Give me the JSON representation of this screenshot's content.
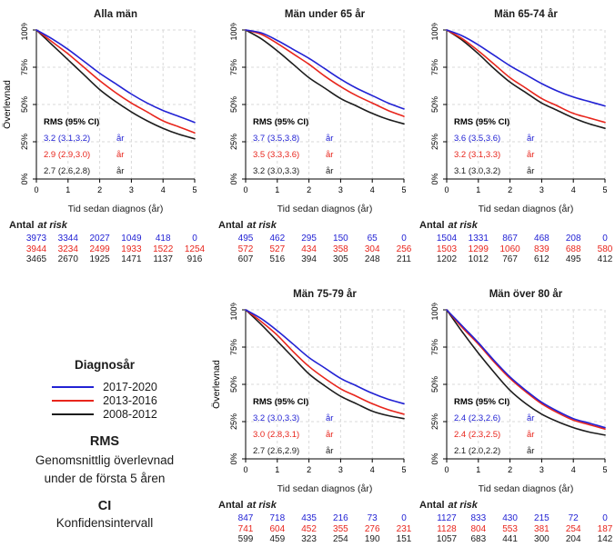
{
  "colors": {
    "blue": "#2222d4",
    "red": "#e8251c",
    "black": "#1c1c1c",
    "grid": "#d9d9d9",
    "axis": "#000000"
  },
  "rms_header": "RMS (95% CI)",
  "rms_unit": "år",
  "at_risk_label": {
    "bold": "Antal",
    "italic": "at risk"
  },
  "axis": {
    "ylabel": "Överlevnad",
    "xlabel": "Tid sedan diagnos (år)",
    "yticks": [
      "0%",
      "25%",
      "50%",
      "75%",
      "100%"
    ],
    "xticks": [
      "0",
      "1",
      "2",
      "3",
      "4",
      "5"
    ]
  },
  "legend": {
    "title": "Diagnosår",
    "items": [
      {
        "label": "2017-2020",
        "color_key": "blue"
      },
      {
        "label": "2013-2016",
        "color_key": "red"
      },
      {
        "label": "2008-2012",
        "color_key": "black"
      }
    ],
    "rms_title": "RMS",
    "rms_desc_line1": "Genomsnittlig överlevnad",
    "rms_desc_line2": "under de första 5 åren",
    "ci_title": "CI",
    "ci_desc": "Konfidensintervall"
  },
  "x_years": [
    0,
    0.5,
    1,
    1.5,
    2,
    2.5,
    3,
    3.5,
    4,
    4.5,
    5
  ],
  "chart_data": [
    {
      "type": "line",
      "title": "Alla män",
      "show_ylabel": true,
      "ylim": [
        0,
        100
      ],
      "xlim": [
        0,
        5
      ],
      "series": [
        {
          "name": "2017-2020",
          "color_key": "blue",
          "values": [
            100,
            94,
            87,
            79,
            71,
            64,
            57,
            51,
            46,
            42,
            38
          ],
          "rms": "3.2 (3.1,3.2)",
          "at_risk": [
            3973,
            3344,
            2027,
            1049,
            418,
            0
          ]
        },
        {
          "name": "2013-2016",
          "color_key": "red",
          "values": [
            100,
            92,
            84,
            75,
            66,
            58,
            51,
            45,
            39,
            35,
            31
          ],
          "rms": "2.9 (2.9,3.0)",
          "at_risk": [
            3944,
            3234,
            2499,
            1933,
            1522,
            1254
          ]
        },
        {
          "name": "2008-2012",
          "color_key": "black",
          "values": [
            100,
            90,
            80,
            70,
            60,
            52,
            45,
            39,
            34,
            30,
            27
          ],
          "rms": "2.7 (2.6,2.8)",
          "at_risk": [
            3465,
            2670,
            1925,
            1471,
            1137,
            916
          ]
        }
      ]
    },
    {
      "type": "line",
      "title": "Män under 65 år",
      "show_ylabel": false,
      "ylim": [
        0,
        100
      ],
      "xlim": [
        0,
        5
      ],
      "series": [
        {
          "name": "2017-2020",
          "color_key": "blue",
          "values": [
            100,
            98,
            93,
            87,
            81,
            74,
            67,
            61,
            56,
            51,
            47
          ],
          "rms": "3.7 (3.5,3.8)",
          "at_risk": [
            495,
            462,
            295,
            150,
            65,
            0
          ]
        },
        {
          "name": "2013-2016",
          "color_key": "red",
          "values": [
            100,
            97,
            91,
            84,
            77,
            69,
            62,
            56,
            51,
            46,
            42
          ],
          "rms": "3.5 (3.3,3.6)",
          "at_risk": [
            572,
            527,
            434,
            358,
            304,
            256
          ]
        },
        {
          "name": "2008-2012",
          "color_key": "black",
          "values": [
            100,
            94,
            86,
            77,
            68,
            61,
            54,
            49,
            44,
            40,
            37
          ],
          "rms": "3.2 (3.0,3.3)",
          "at_risk": [
            607,
            516,
            394,
            305,
            248,
            211
          ]
        }
      ]
    },
    {
      "type": "line",
      "title": "Män 65-74 år",
      "show_ylabel": false,
      "ylim": [
        0,
        100
      ],
      "xlim": [
        0,
        5
      ],
      "series": [
        {
          "name": "2017-2020",
          "color_key": "blue",
          "values": [
            100,
            96,
            90,
            83,
            76,
            70,
            64,
            59,
            55,
            52,
            49
          ],
          "rms": "3.6 (3.5,3.6)",
          "at_risk": [
            1504,
            1331,
            867,
            468,
            208,
            0
          ]
        },
        {
          "name": "2013-2016",
          "color_key": "red",
          "values": [
            100,
            94,
            86,
            77,
            68,
            61,
            54,
            49,
            44,
            41,
            38
          ],
          "rms": "3.2 (3.1,3.3)",
          "at_risk": [
            1503,
            1299,
            1060,
            839,
            688,
            580
          ]
        },
        {
          "name": "2008-2012",
          "color_key": "black",
          "values": [
            100,
            93,
            84,
            74,
            65,
            58,
            51,
            46,
            41,
            37,
            34
          ],
          "rms": "3.1 (3.0,3.2)",
          "at_risk": [
            1202,
            1012,
            767,
            612,
            495,
            412
          ]
        }
      ]
    },
    {
      "type": "line",
      "title": "Män 75-79 år",
      "show_ylabel": true,
      "ylim": [
        0,
        100
      ],
      "xlim": [
        0,
        5
      ],
      "series": [
        {
          "name": "2017-2020",
          "color_key": "blue",
          "values": [
            100,
            94,
            86,
            77,
            68,
            61,
            54,
            49,
            44,
            40,
            37
          ],
          "rms": "3.2 (3.0,3.3)",
          "at_risk": [
            847,
            718,
            435,
            216,
            73,
            0
          ]
        },
        {
          "name": "2013-2016",
          "color_key": "red",
          "values": [
            100,
            92,
            83,
            72,
            62,
            54,
            47,
            42,
            37,
            33,
            30
          ],
          "rms": "3.0 (2.8,3.1)",
          "at_risk": [
            741,
            604,
            452,
            355,
            276,
            231
          ]
        },
        {
          "name": "2008-2012",
          "color_key": "black",
          "values": [
            100,
            90,
            79,
            68,
            57,
            49,
            42,
            37,
            32,
            29,
            27
          ],
          "rms": "2.7 (2.6,2.9)",
          "at_risk": [
            599,
            459,
            323,
            254,
            190,
            151
          ]
        }
      ]
    },
    {
      "type": "line",
      "title": "Män över 80 år",
      "show_ylabel": false,
      "ylim": [
        0,
        100
      ],
      "xlim": [
        0,
        5
      ],
      "series": [
        {
          "name": "2017-2020",
          "color_key": "blue",
          "values": [
            100,
            89,
            78,
            66,
            55,
            46,
            38,
            32,
            27,
            24,
            21
          ],
          "rms": "2.4 (2.3,2.6)",
          "at_risk": [
            1127,
            833,
            430,
            215,
            72,
            0
          ]
        },
        {
          "name": "2013-2016",
          "color_key": "red",
          "values": [
            100,
            88,
            77,
            65,
            54,
            45,
            37,
            31,
            26,
            23,
            20
          ],
          "rms": "2.4 (2.3,2.5)",
          "at_risk": [
            1128,
            804,
            553,
            381,
            254,
            187
          ]
        },
        {
          "name": "2008-2012",
          "color_key": "black",
          "values": [
            100,
            85,
            71,
            58,
            46,
            37,
            30,
            25,
            21,
            18,
            16
          ],
          "rms": "2.1 (2.0,2.2)",
          "at_risk": [
            1057,
            683,
            441,
            300,
            204,
            142
          ]
        }
      ]
    }
  ]
}
